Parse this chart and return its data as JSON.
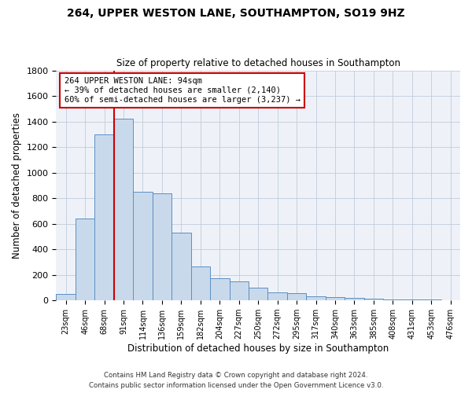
{
  "title1": "264, UPPER WESTON LANE, SOUTHAMPTON, SO19 9HZ",
  "title2": "Size of property relative to detached houses in Southampton",
  "xlabel": "Distribution of detached houses by size in Southampton",
  "ylabel": "Number of detached properties",
  "bins": [
    "23sqm",
    "46sqm",
    "68sqm",
    "91sqm",
    "114sqm",
    "136sqm",
    "159sqm",
    "182sqm",
    "204sqm",
    "227sqm",
    "250sqm",
    "272sqm",
    "295sqm",
    "317sqm",
    "340sqm",
    "363sqm",
    "385sqm",
    "408sqm",
    "431sqm",
    "453sqm",
    "476sqm"
  ],
  "values": [
    50,
    640,
    1300,
    1420,
    850,
    840,
    530,
    265,
    175,
    150,
    100,
    60,
    55,
    30,
    25,
    20,
    15,
    10,
    7,
    5,
    3
  ],
  "bar_color": "#c9d9ec",
  "bar_edge_color": "#5a8fc3",
  "vline_color": "#cc0000",
  "annotation_text": "264 UPPER WESTON LANE: 94sqm\n← 39% of detached houses are smaller (2,140)\n60% of semi-detached houses are larger (3,237) →",
  "annotation_box_color": "#ffffff",
  "annotation_box_edge": "#cc0000",
  "ylim": [
    0,
    1800
  ],
  "yticks": [
    0,
    200,
    400,
    600,
    800,
    1000,
    1200,
    1400,
    1600,
    1800
  ],
  "footer1": "Contains HM Land Registry data © Crown copyright and database right 2024.",
  "footer2": "Contains public sector information licensed under the Open Government Licence v3.0."
}
